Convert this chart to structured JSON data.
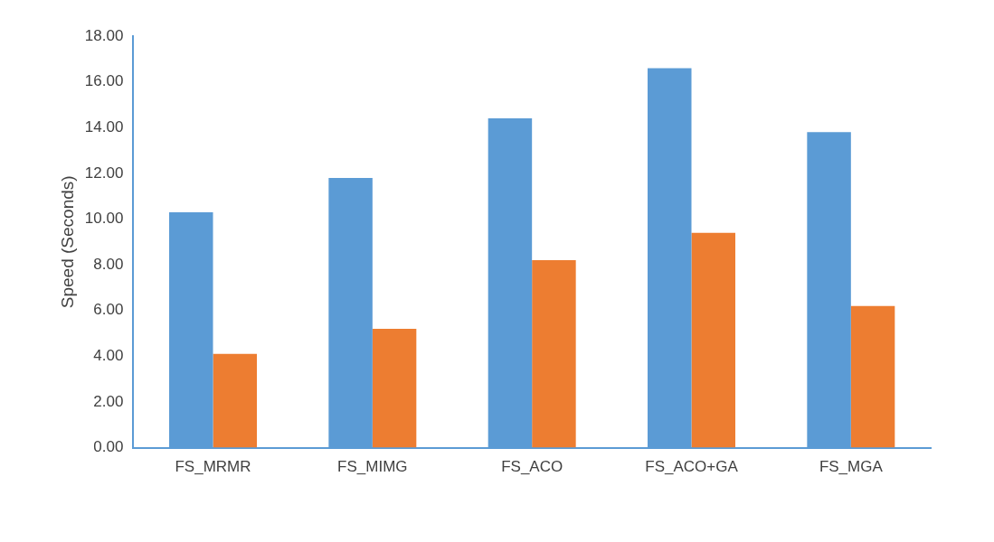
{
  "chart_data": {
    "type": "bar",
    "ylabel": "Speed (Seconds)",
    "categories": [
      "FS_MRMR",
      "FS_MIMG",
      "FS_ACO",
      "FS_ACO+GA",
      "FS_MGA"
    ],
    "series": [
      {
        "color": "#5b9bd5",
        "values": [
          10.3,
          11.8,
          14.4,
          16.6,
          13.8
        ]
      },
      {
        "color": "#ed7d31",
        "values": [
          4.1,
          5.2,
          8.2,
          9.4,
          6.2
        ]
      }
    ],
    "ylim": [
      0,
      18
    ],
    "yticks": [
      {
        "value": 0,
        "label": "0.00"
      },
      {
        "value": 2,
        "label": "2.00"
      },
      {
        "value": 4,
        "label": "4.00"
      },
      {
        "value": 6,
        "label": "6.00"
      },
      {
        "value": 8,
        "label": "8.00"
      },
      {
        "value": 10,
        "label": "10.00"
      },
      {
        "value": 12,
        "label": "12.00"
      },
      {
        "value": 14,
        "label": "14.00"
      },
      {
        "value": 16,
        "label": "16.00"
      },
      {
        "value": 18,
        "label": "18.00"
      }
    ]
  }
}
